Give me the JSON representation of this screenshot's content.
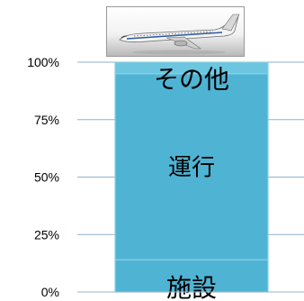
{
  "chart_data": {
    "type": "bar",
    "stacked": true,
    "categories": [
      ""
    ],
    "series": [
      {
        "name": "施設",
        "values": [
          14
        ]
      },
      {
        "name": "運行",
        "values": [
          81
        ]
      },
      {
        "name": "その他",
        "values": [
          5
        ]
      }
    ],
    "ylim": [
      0,
      100
    ],
    "yticks": [
      "0%",
      "25%",
      "50%",
      "75%",
      "100%"
    ],
    "grid": true,
    "legend": "none"
  },
  "colors": {
    "bar_fill": "#4fb4d4",
    "bar_top": "#6cc6e0",
    "bar_stroke": "#8ccfe2",
    "gridline": "#8fb2cf",
    "axis": "#9eb6cc"
  },
  "image": {
    "icon": "airplane-icon"
  }
}
